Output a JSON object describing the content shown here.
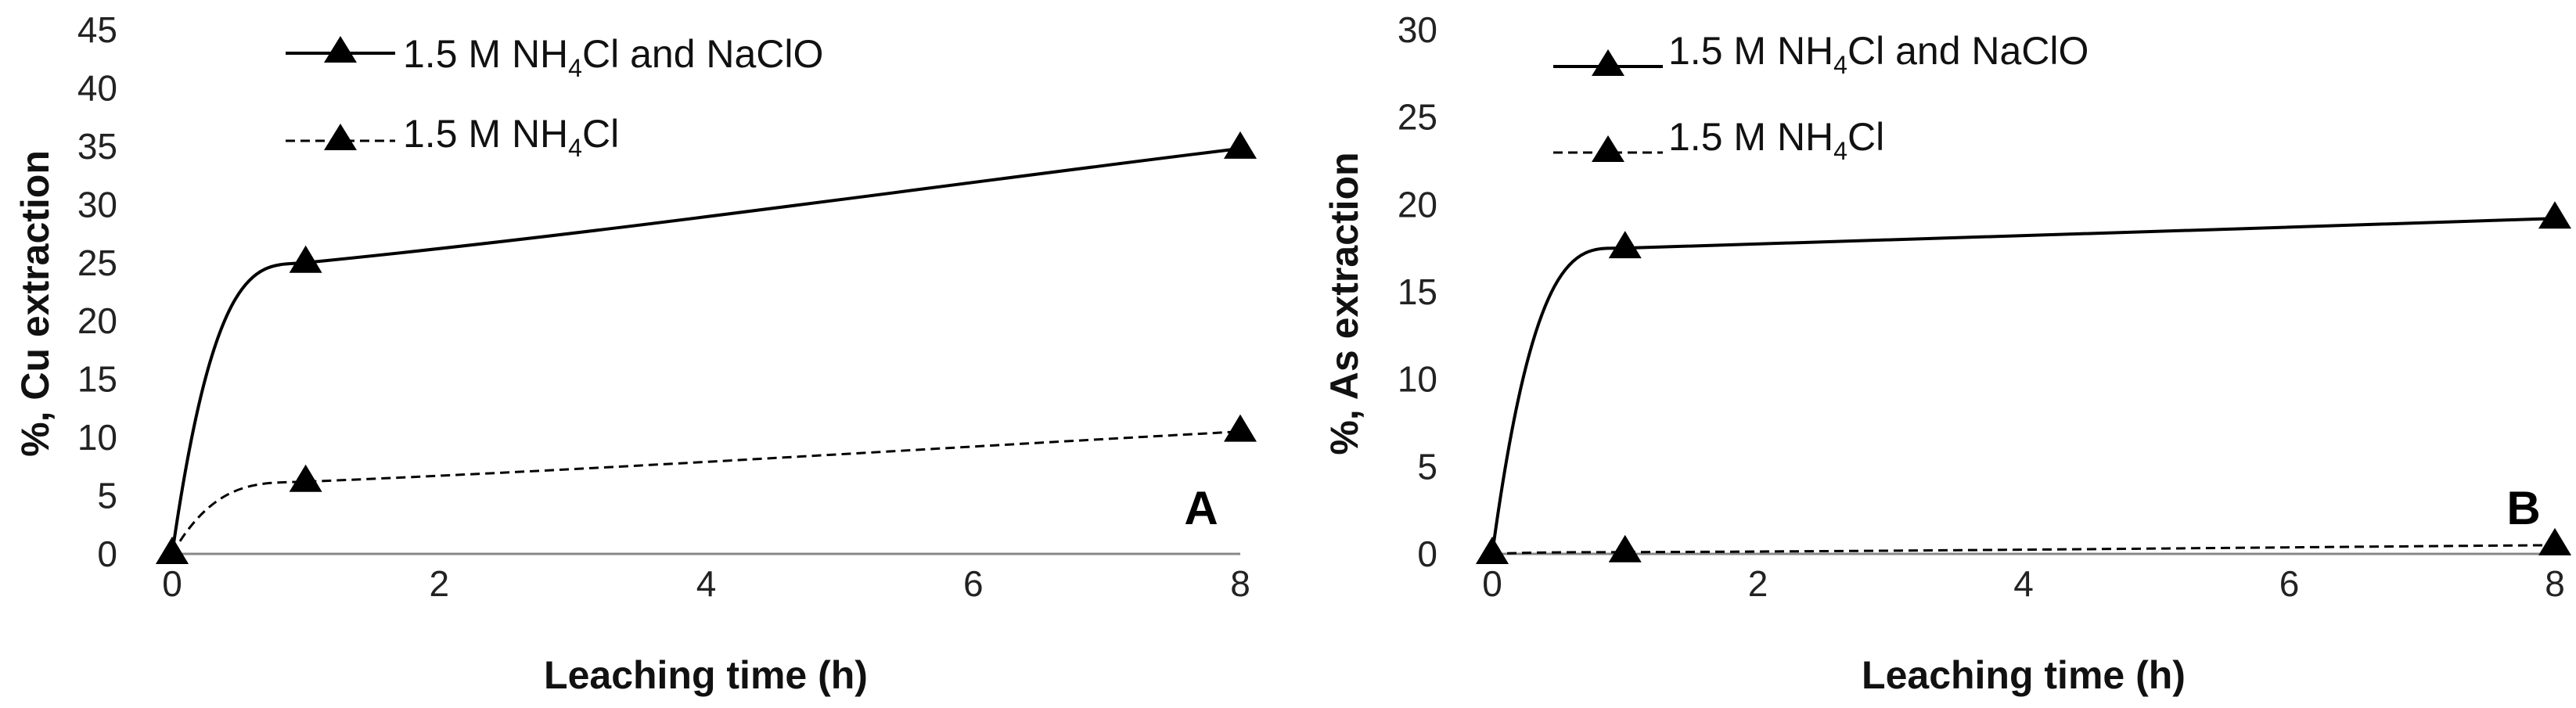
{
  "chart_data": [
    {
      "type": "line",
      "panel_label": "A",
      "xlabel": "Leaching time (h)",
      "ylabel": "%, Cu extraction",
      "x_ticks": [
        "0",
        "2",
        "4",
        "6",
        "8"
      ],
      "y_ticks": [
        "0",
        "5",
        "10",
        "15",
        "20",
        "25",
        "30",
        "35",
        "40",
        "45"
      ],
      "xlim": [
        0,
        8
      ],
      "ylim": [
        0,
        45
      ],
      "grid": false,
      "legend_position": "top-left",
      "series": [
        {
          "name_parts": {
            "pre": "1.5 M NH",
            "sub": "4",
            "post": "Cl and NaClO"
          },
          "line_style": "solid",
          "marker": "triangle",
          "x": [
            0,
            1,
            8
          ],
          "y": [
            0,
            25.0,
            34.8
          ]
        },
        {
          "name_parts": {
            "pre": "1.5 M NH",
            "sub": "4",
            "post": "Cl"
          },
          "line_style": "dashed",
          "marker": "triangle",
          "x": [
            0,
            1,
            8
          ],
          "y": [
            0,
            6.2,
            10.5
          ]
        }
      ]
    },
    {
      "type": "line",
      "panel_label": "B",
      "xlabel": "Leaching time (h)",
      "ylabel": "%, As extraction",
      "x_ticks": [
        "0",
        "2",
        "4",
        "6",
        "8"
      ],
      "y_ticks": [
        "0",
        "5",
        "10",
        "15",
        "20",
        "25",
        "30"
      ],
      "xlim": [
        0,
        8
      ],
      "ylim": [
        0,
        30
      ],
      "grid": false,
      "legend_position": "top-left",
      "series": [
        {
          "name_parts": {
            "pre": "1.5 M NH",
            "sub": "4",
            "post": "Cl and NaClO"
          },
          "line_style": "solid",
          "marker": "triangle",
          "x": [
            0,
            1,
            8
          ],
          "y": [
            0,
            17.5,
            19.2
          ]
        },
        {
          "name_parts": {
            "pre": "1.5 M NH",
            "sub": "4",
            "post": "Cl"
          },
          "line_style": "dashed",
          "marker": "triangle",
          "x": [
            0,
            1,
            8
          ],
          "y": [
            0,
            0.1,
            0.5
          ]
        }
      ]
    }
  ]
}
